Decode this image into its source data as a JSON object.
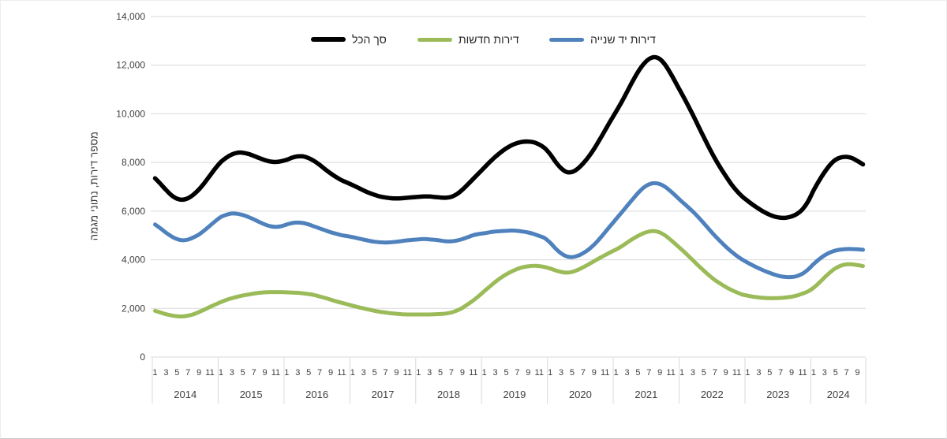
{
  "legend": {
    "items": [
      {
        "label": "סך הכל",
        "color": "#000000"
      },
      {
        "label": "דירות חדשות",
        "color": "#9BBB59"
      },
      {
        "label": "דירות יד שנייה",
        "color": "#4F81BD"
      }
    ]
  },
  "y_axis": {
    "title": "מספר דירות, נתוני מגמה",
    "tick_labels": [
      "0",
      "2,000",
      "4,000",
      "6,000",
      "8,000",
      "10,000",
      "12,000",
      "14,000"
    ]
  },
  "x_axis": {
    "years": [
      "2014",
      "2015",
      "2016",
      "2017",
      "2018",
      "2019",
      "2020",
      "2021",
      "2022",
      "2023",
      "2024"
    ],
    "month_tick_labels": [
      "1",
      "3",
      "5",
      "7",
      "9",
      "11"
    ],
    "last_year_month_tick_labels": [
      "1",
      "3",
      "5",
      "7",
      "9"
    ]
  },
  "colors": {
    "gridline": "#d9d9d9",
    "axis_text": "#3f3f3f"
  },
  "chart_data": {
    "type": "line",
    "frequency": "monthly",
    "x_start": "2014-01",
    "x_end": "2024-10",
    "title": "",
    "xlabel": "",
    "ylabel": "מספר דירות, נתוני מגמה",
    "ylim": [
      0,
      14000
    ],
    "y_tick_step": 2000,
    "grid": true,
    "legend_position": "top",
    "series": [
      {
        "name": "סך הכל",
        "color": "#000000",
        "values": [
          7350,
          7120,
          6870,
          6650,
          6510,
          6470,
          6530,
          6680,
          6890,
          7160,
          7460,
          7760,
          8020,
          8200,
          8330,
          8400,
          8400,
          8350,
          8270,
          8180,
          8100,
          8040,
          8020,
          8050,
          8110,
          8200,
          8250,
          8250,
          8180,
          8060,
          7900,
          7720,
          7550,
          7400,
          7270,
          7170,
          7070,
          6960,
          6850,
          6750,
          6670,
          6600,
          6560,
          6530,
          6520,
          6530,
          6550,
          6570,
          6590,
          6600,
          6600,
          6580,
          6560,
          6550,
          6590,
          6700,
          6880,
          7100,
          7330,
          7560,
          7790,
          8020,
          8230,
          8420,
          8580,
          8710,
          8800,
          8850,
          8860,
          8830,
          8740,
          8590,
          8340,
          8020,
          7760,
          7610,
          7610,
          7740,
          7960,
          8230,
          8560,
          8930,
          9320,
          9710,
          10090,
          10480,
          10900,
          11330,
          11720,
          12040,
          12250,
          12330,
          12250,
          12000,
          11640,
          11230,
          10820,
          10400,
          9960,
          9500,
          9040,
          8590,
          8170,
          7790,
          7440,
          7110,
          6830,
          6600,
          6420,
          6250,
          6100,
          5960,
          5850,
          5770,
          5730,
          5730,
          5780,
          5890,
          6080,
          6400,
          6850,
          7250,
          7600,
          7900,
          8110,
          8210,
          8230,
          8180,
          8060,
          7920
        ]
      },
      {
        "name": "דירות חדשות",
        "color": "#9BBB59",
        "values": [
          1900,
          1830,
          1760,
          1710,
          1680,
          1670,
          1700,
          1760,
          1850,
          1950,
          2060,
          2160,
          2260,
          2350,
          2420,
          2480,
          2530,
          2570,
          2610,
          2640,
          2660,
          2670,
          2670,
          2670,
          2660,
          2650,
          2640,
          2620,
          2590,
          2550,
          2490,
          2430,
          2360,
          2290,
          2230,
          2170,
          2110,
          2050,
          2000,
          1950,
          1900,
          1860,
          1830,
          1800,
          1780,
          1760,
          1750,
          1750,
          1750,
          1750,
          1750,
          1760,
          1770,
          1790,
          1830,
          1910,
          2020,
          2170,
          2330,
          2510,
          2710,
          2900,
          3090,
          3260,
          3400,
          3520,
          3620,
          3690,
          3730,
          3750,
          3740,
          3700,
          3640,
          3560,
          3500,
          3470,
          3500,
          3580,
          3690,
          3810,
          3940,
          4070,
          4190,
          4310,
          4420,
          4550,
          4700,
          4850,
          4980,
          5090,
          5160,
          5180,
          5120,
          4990,
          4810,
          4610,
          4410,
          4200,
          3980,
          3760,
          3550,
          3350,
          3170,
          3020,
          2880,
          2760,
          2660,
          2570,
          2520,
          2480,
          2450,
          2430,
          2420,
          2420,
          2430,
          2450,
          2480,
          2530,
          2610,
          2700,
          2850,
          3050,
          3270,
          3480,
          3650,
          3760,
          3810,
          3810,
          3780,
          3740
        ]
      },
      {
        "name": "דירות יד שנייה",
        "color": "#4F81BD",
        "values": [
          5450,
          5290,
          5110,
          4960,
          4850,
          4800,
          4830,
          4920,
          5040,
          5210,
          5400,
          5590,
          5760,
          5850,
          5900,
          5890,
          5840,
          5760,
          5660,
          5550,
          5450,
          5380,
          5350,
          5380,
          5450,
          5510,
          5530,
          5510,
          5450,
          5370,
          5290,
          5210,
          5130,
          5070,
          5010,
          4970,
          4930,
          4880,
          4830,
          4780,
          4740,
          4720,
          4710,
          4720,
          4740,
          4770,
          4800,
          4820,
          4840,
          4850,
          4840,
          4820,
          4790,
          4760,
          4760,
          4790,
          4850,
          4930,
          5010,
          5060,
          5090,
          5130,
          5160,
          5180,
          5190,
          5200,
          5190,
          5160,
          5120,
          5060,
          4980,
          4890,
          4700,
          4460,
          4260,
          4140,
          4110,
          4160,
          4270,
          4420,
          4620,
          4860,
          5130,
          5400,
          5670,
          5940,
          6210,
          6480,
          6740,
          6960,
          7100,
          7150,
          7110,
          6990,
          6810,
          6600,
          6390,
          6190,
          5980,
          5750,
          5500,
          5240,
          4990,
          4760,
          4540,
          4340,
          4160,
          4010,
          3880,
          3760,
          3650,
          3550,
          3460,
          3380,
          3320,
          3290,
          3290,
          3330,
          3430,
          3600,
          3820,
          4020,
          4180,
          4300,
          4380,
          4420,
          4440,
          4440,
          4430,
          4410
        ]
      }
    ]
  }
}
